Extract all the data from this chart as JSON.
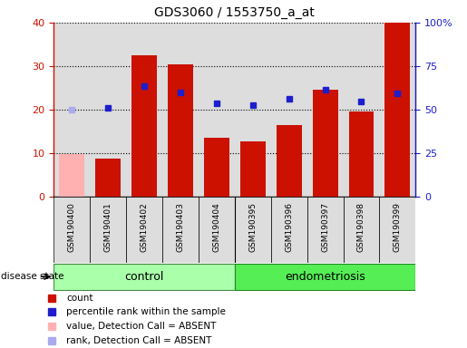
{
  "title": "GDS3060 / 1553750_a_at",
  "samples": [
    "GSM190400",
    "GSM190401",
    "GSM190402",
    "GSM190403",
    "GSM190404",
    "GSM190395",
    "GSM190396",
    "GSM190397",
    "GSM190398",
    "GSM190399"
  ],
  "count_values": [
    9.8,
    8.8,
    32.5,
    30.5,
    13.5,
    12.8,
    16.5,
    24.5,
    19.5,
    40.0
  ],
  "count_absent": [
    true,
    false,
    false,
    false,
    false,
    false,
    false,
    false,
    false,
    false
  ],
  "percentile_values": [
    50.0,
    51.0,
    63.5,
    60.0,
    53.5,
    52.5,
    56.0,
    61.5,
    54.5,
    59.5
  ],
  "percentile_absent": [
    true,
    false,
    false,
    false,
    false,
    false,
    false,
    false,
    false,
    false
  ],
  "groups": [
    {
      "label": "control",
      "start": 0,
      "end": 4
    },
    {
      "label": "endometriosis",
      "start": 5,
      "end": 9
    }
  ],
  "ylim_left": [
    0,
    40
  ],
  "ylim_right": [
    0,
    100
  ],
  "yticks_left": [
    0,
    10,
    20,
    30,
    40
  ],
  "yticks_right": [
    0,
    25,
    50,
    75,
    100
  ],
  "ytick_labels_right": [
    "0",
    "25",
    "50",
    "75",
    "100%"
  ],
  "bar_color_normal": "#CC1100",
  "bar_color_absent": "#FFB0B0",
  "dot_color_normal": "#1E1ECC",
  "dot_color_absent": "#AAAAEE",
  "group_color_control": "#AAFFAA",
  "group_color_endometriosis": "#55EE55",
  "disease_state_label": "disease state",
  "background_color": "#DDDDDD",
  "white": "#FFFFFF"
}
